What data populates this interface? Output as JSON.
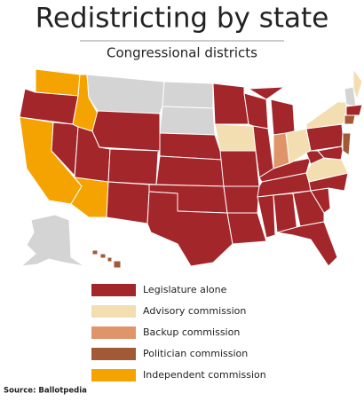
{
  "header": {
    "title": "Redistricting by state",
    "subtitle": "Congressional districts"
  },
  "legend": [
    {
      "label": "Legislature alone",
      "color": "#a3262a"
    },
    {
      "label": "Advisory commission",
      "color": "#f3deb1"
    },
    {
      "label": "Backup commission",
      "color": "#e0946a"
    },
    {
      "label": "Politician commission",
      "color": "#a15a35"
    },
    {
      "label": "Independent commission",
      "color": "#f5a300"
    }
  ],
  "source": "Source: Ballotpedia"
}
